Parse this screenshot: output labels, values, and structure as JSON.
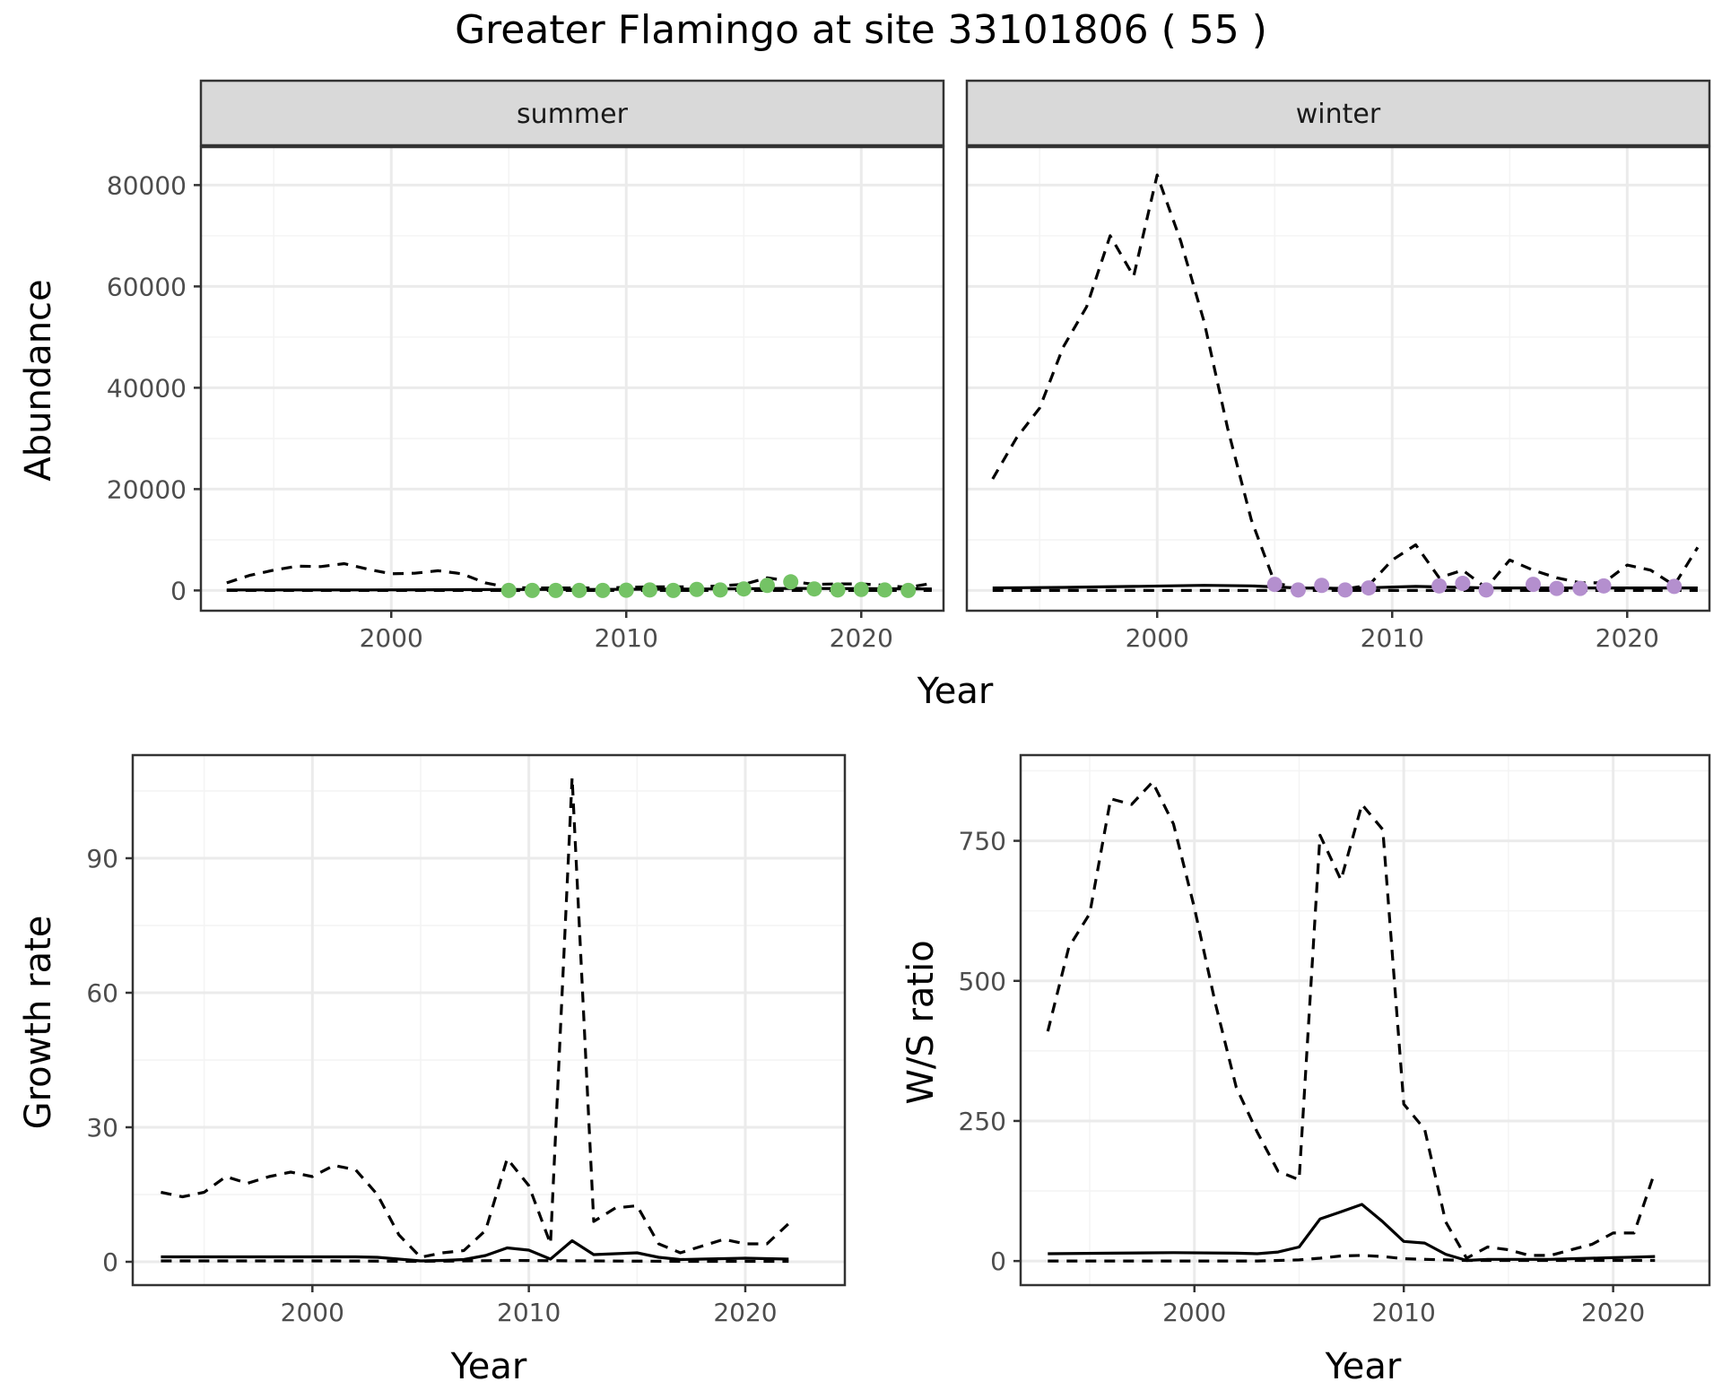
{
  "title": "Greater Flamingo at site 33101806 ( 55 )",
  "colors": {
    "summer_points": "#74c365",
    "winter_points": "#b48fce",
    "line": "#000000",
    "grid_major": "#ebebeb",
    "grid_minor": "#f4f4f4",
    "strip_bg": "#d9d9d9",
    "panel_border": "#333333"
  },
  "chart_data": [
    {
      "type": "line",
      "panel": "abundance",
      "facets": [
        "summer",
        "winter"
      ],
      "xlabel": "Year",
      "ylabel": "Abundance",
      "xlim": [
        1991.9,
        2023.5
      ],
      "ylim": [
        -4000,
        87500
      ],
      "xticks": [
        2000,
        2010,
        2020
      ],
      "yticks": [
        0,
        20000,
        40000,
        60000,
        80000
      ],
      "ytick_labels": [
        "0",
        "20000",
        "40000",
        "60000",
        "80000"
      ],
      "grid": true,
      "series": [
        {
          "facet": "summer",
          "role": "estimate",
          "style": "solid",
          "x": [
            1993,
            1996,
            1999,
            2002,
            2005,
            2008,
            2011,
            2014,
            2017,
            2020,
            2023
          ],
          "y": [
            100,
            100,
            100,
            150,
            200,
            200,
            250,
            300,
            400,
            350,
            300
          ]
        },
        {
          "facet": "summer",
          "role": "upper",
          "style": "dashed",
          "x": [
            1993,
            1994,
            1995,
            1996,
            1997,
            1998,
            1999,
            2000,
            2001,
            2002,
            2003,
            2004,
            2005,
            2006,
            2007,
            2008,
            2009,
            2010,
            2011,
            2012,
            2013,
            2014,
            2015,
            2016,
            2017,
            2018,
            2019,
            2020,
            2021,
            2022,
            2023
          ],
          "y": [
            1500,
            3000,
            4000,
            4800,
            4700,
            5300,
            4200,
            3300,
            3400,
            3900,
            3300,
            1500,
            600,
            500,
            500,
            500,
            500,
            600,
            700,
            700,
            700,
            900,
            1200,
            2500,
            1800,
            1200,
            1300,
            1300,
            1000,
            600,
            1400
          ]
        },
        {
          "facet": "summer",
          "role": "lower",
          "style": "dashed",
          "x": [
            1993,
            1998,
            2003,
            2008,
            2013,
            2018,
            2023
          ],
          "y": [
            0,
            0,
            0,
            0,
            0,
            0,
            0
          ]
        },
        {
          "facet": "summer",
          "role": "observed",
          "style": "points",
          "x": [
            2005,
            2006,
            2007,
            2008,
            2009,
            2010,
            2011,
            2012,
            2013,
            2014,
            2015,
            2016,
            2017,
            2018,
            2019,
            2020,
            2021,
            2022
          ],
          "y": [
            0,
            0,
            0,
            0,
            0,
            50,
            100,
            0,
            200,
            100,
            300,
            1000,
            1700,
            300,
            100,
            200,
            100,
            0
          ]
        },
        {
          "facet": "winter",
          "role": "estimate",
          "style": "solid",
          "x": [
            1993,
            1996,
            1999,
            2002,
            2004,
            2006,
            2008,
            2011,
            2014,
            2017,
            2020,
            2023
          ],
          "y": [
            500,
            600,
            800,
            1000,
            900,
            500,
            400,
            800,
            500,
            500,
            500,
            500
          ]
        },
        {
          "facet": "winter",
          "role": "upper",
          "style": "dashed",
          "x": [
            1993,
            1994,
            1995,
            1996,
            1997,
            1998,
            1999,
            2000,
            2001,
            2002,
            2003,
            2004,
            2005,
            2006,
            2007,
            2008,
            2009,
            2010,
            2011,
            2012,
            2013,
            2014,
            2015,
            2016,
            2017,
            2018,
            2019,
            2020,
            2021,
            2022,
            2023
          ],
          "y": [
            22000,
            30000,
            36000,
            48000,
            56000,
            70000,
            62000,
            82000,
            69000,
            53000,
            32000,
            14000,
            1500,
            500,
            500,
            300,
            1000,
            6000,
            9000,
            2500,
            4000,
            500,
            6000,
            4000,
            2500,
            1500,
            1500,
            5000,
            4000,
            1000,
            8500
          ]
        },
        {
          "facet": "winter",
          "role": "lower",
          "style": "dashed",
          "x": [
            1993,
            1998,
            2003,
            2008,
            2013,
            2018,
            2023
          ],
          "y": [
            0,
            0,
            0,
            0,
            0,
            0,
            0
          ]
        },
        {
          "facet": "winter",
          "role": "observed",
          "style": "points",
          "x": [
            2005,
            2006,
            2007,
            2008,
            2009,
            2012,
            2013,
            2014,
            2016,
            2017,
            2018,
            2019,
            2022
          ],
          "y": [
            1200,
            100,
            1000,
            100,
            500,
            900,
            1400,
            100,
            1200,
            400,
            400,
            900,
            800
          ]
        }
      ]
    },
    {
      "type": "line",
      "panel": "growth",
      "xlabel": "Year",
      "ylabel": "Growth rate",
      "xlim": [
        1991.7,
        2024.6
      ],
      "ylim": [
        -5.2,
        113
      ],
      "xticks": [
        2000,
        2010,
        2020
      ],
      "yticks": [
        0,
        30,
        60,
        90
      ],
      "ytick_labels": [
        "0",
        "30",
        "60",
        "90"
      ],
      "grid": true,
      "series": [
        {
          "role": "estimate",
          "style": "solid",
          "x": [
            1993,
            1996,
            1999,
            2002,
            2003,
            2004,
            2005,
            2006,
            2007,
            2008,
            2009,
            2010,
            2011,
            2012,
            2013,
            2014,
            2015,
            2016,
            2017,
            2018,
            2019,
            2020,
            2021,
            2022
          ],
          "y": [
            1.1,
            1.1,
            1.1,
            1.1,
            1.0,
            0.6,
            0.2,
            0.3,
            0.5,
            1.4,
            3.1,
            2.6,
            0.6,
            4.7,
            1.6,
            1.8,
            2.0,
            1.0,
            0.5,
            0.6,
            0.7,
            0.8,
            0.7,
            0.6
          ]
        },
        {
          "role": "upper",
          "style": "dashed",
          "x": [
            1993,
            1994,
            1995,
            1996,
            1997,
            1998,
            1999,
            2000,
            2001,
            2002,
            2003,
            2004,
            2005,
            2006,
            2007,
            2008,
            2009,
            2010,
            2011,
            2012,
            2013,
            2014,
            2015,
            2016,
            2017,
            2018,
            2019,
            2020,
            2021,
            2022
          ],
          "y": [
            15.5,
            14.5,
            15.5,
            19,
            17.5,
            19,
            20,
            19,
            21.5,
            20.5,
            15,
            6,
            1,
            2,
            2.5,
            7,
            23,
            17,
            4,
            108,
            9,
            12,
            12.5,
            4,
            2,
            3.5,
            5,
            4,
            4,
            8.5
          ]
        },
        {
          "role": "lower",
          "style": "dashed",
          "x": [
            1993,
            1997,
            2001,
            2005,
            2009,
            2013,
            2017,
            2022
          ],
          "y": [
            0.2,
            0.2,
            0.2,
            0.1,
            0.3,
            0.2,
            0.1,
            0.1
          ]
        }
      ]
    },
    {
      "type": "line",
      "panel": "ratio",
      "xlabel": "Year",
      "ylabel": "W/S ratio",
      "xlim": [
        1991.7,
        2024.6
      ],
      "ylim": [
        -43,
        903
      ],
      "xticks": [
        2000,
        2010,
        2020
      ],
      "yticks": [
        0,
        250,
        500,
        750
      ],
      "ytick_labels": [
        "0",
        "250",
        "500",
        "750"
      ],
      "grid": true,
      "series": [
        {
          "role": "estimate",
          "style": "solid",
          "x": [
            1993,
            1996,
            1999,
            2002,
            2003,
            2004,
            2005,
            2006,
            2007,
            2008,
            2009,
            2010,
            2011,
            2012,
            2013,
            2014,
            2015,
            2016,
            2017,
            2018,
            2019,
            2020,
            2021,
            2022
          ],
          "y": [
            13,
            14,
            15,
            14,
            13,
            16,
            25,
            75,
            88,
            101,
            70,
            35,
            32,
            12,
            1,
            3,
            3,
            3,
            3,
            4,
            5,
            6,
            7,
            8
          ]
        },
        {
          "role": "upper",
          "style": "dashed",
          "x": [
            1993,
            1994,
            1995,
            1996,
            1997,
            1998,
            1999,
            2000,
            2001,
            2002,
            2003,
            2004,
            2005,
            2006,
            2007,
            2008,
            2009,
            2010,
            2011,
            2012,
            2013,
            2014,
            2015,
            2016,
            2017,
            2018,
            2019,
            2020,
            2021,
            2022
          ],
          "y": [
            410,
            560,
            620,
            825,
            815,
            855,
            780,
            630,
            460,
            310,
            230,
            160,
            145,
            760,
            680,
            815,
            770,
            280,
            235,
            70,
            5,
            25,
            20,
            10,
            10,
            20,
            30,
            50,
            50,
            160
          ]
        },
        {
          "role": "lower",
          "style": "dashed",
          "x": [
            1993,
            1997,
            2001,
            2003,
            2005,
            2006,
            2007,
            2008,
            2009,
            2010,
            2013,
            2016,
            2019,
            2022
          ],
          "y": [
            0,
            0,
            0,
            0,
            2,
            5,
            9,
            10,
            8,
            4,
            1,
            1,
            1,
            1
          ]
        }
      ]
    }
  ]
}
